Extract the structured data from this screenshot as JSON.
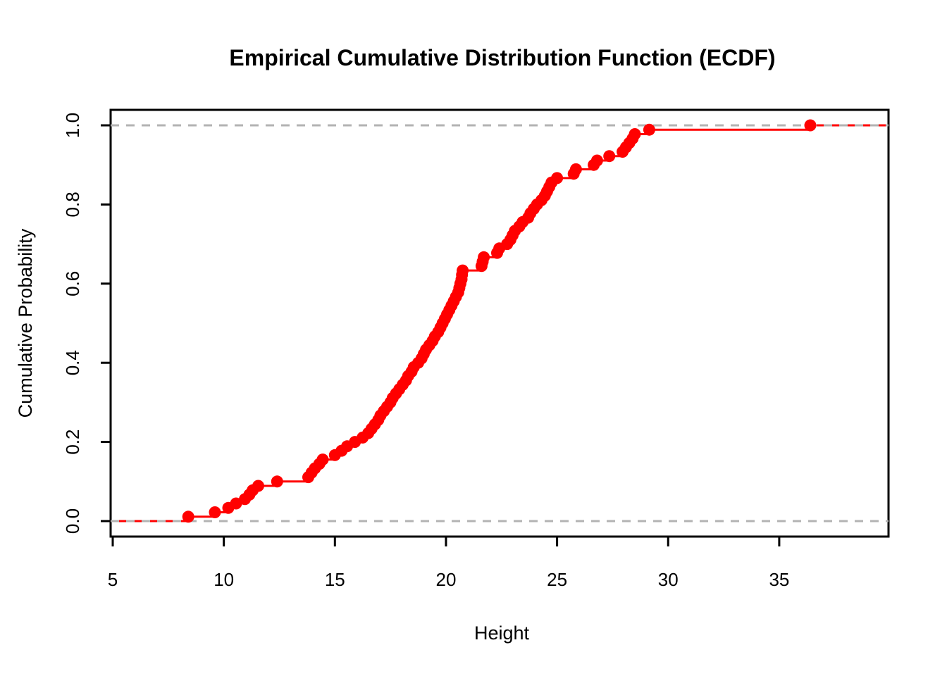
{
  "title": "Empirical Cumulative Distribution Function (ECDF)",
  "x_axis": {
    "label": "Height",
    "ticks": [
      "5",
      "10",
      "15",
      "20",
      "25",
      "30",
      "35"
    ],
    "tick_values": [
      5,
      10,
      15,
      20,
      25,
      30,
      35
    ]
  },
  "y_axis": {
    "label": "Cumulative Probability",
    "ticks": [
      "0.0",
      "0.2",
      "0.4",
      "0.6",
      "0.8",
      "1.0"
    ],
    "tick_values": [
      0,
      0.2,
      0.4,
      0.6,
      0.8,
      1.0
    ]
  },
  "colors": {
    "ecdf": "#ff0000",
    "reference_line": "#b3b3b3",
    "axis": "#000000",
    "background": "#ffffff"
  },
  "chart_data": {
    "type": "line",
    "subtype": "ecdf-step",
    "title": "Empirical Cumulative Distribution Function (ECDF)",
    "xlabel": "Height",
    "ylabel": "Cumulative Probability",
    "n": 90,
    "xlim": [
      4.9,
      39.9
    ],
    "ylim": [
      0,
      1
    ],
    "grid": false,
    "marker": "filled-circle",
    "reference_lines_y": [
      0,
      1
    ],
    "values": [
      8.4,
      9.6,
      10.2,
      10.55,
      10.95,
      11.15,
      11.3,
      11.55,
      12.4,
      13.8,
      13.95,
      14.1,
      14.3,
      14.45,
      15.0,
      15.3,
      15.55,
      15.9,
      16.25,
      16.5,
      16.65,
      16.8,
      16.95,
      17.05,
      17.2,
      17.35,
      17.5,
      17.6,
      17.75,
      17.9,
      18.05,
      18.2,
      18.3,
      18.45,
      18.55,
      18.75,
      18.9,
      19.0,
      19.1,
      19.25,
      19.4,
      19.5,
      19.65,
      19.75,
      19.85,
      19.95,
      20.05,
      20.15,
      20.25,
      20.35,
      20.45,
      20.55,
      20.6,
      20.65,
      20.7,
      20.72,
      20.75,
      21.6,
      21.65,
      21.7,
      22.3,
      22.4,
      22.75,
      22.9,
      23.0,
      23.1,
      23.3,
      23.45,
      23.7,
      23.8,
      23.95,
      24.1,
      24.3,
      24.45,
      24.55,
      24.65,
      24.75,
      25.0,
      25.75,
      25.85,
      26.65,
      26.8,
      27.35,
      27.95,
      28.1,
      28.25,
      28.4,
      28.5,
      29.15,
      36.4
    ]
  }
}
